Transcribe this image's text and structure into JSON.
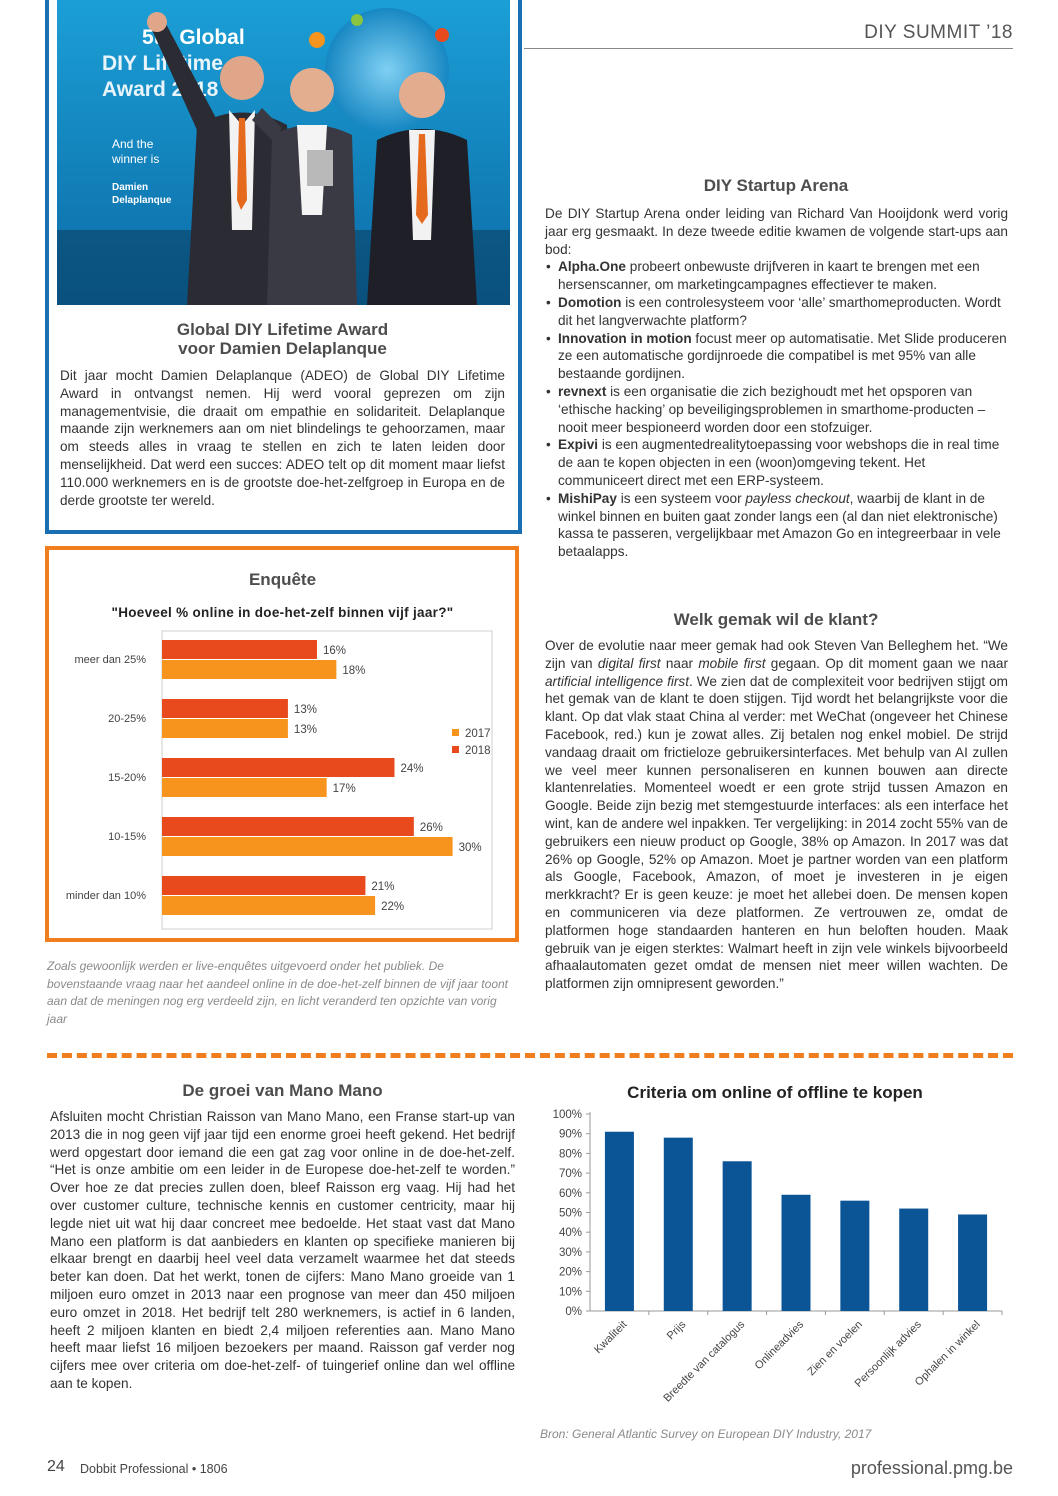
{
  "header": {
    "title": "DIY SUMMIT ’18"
  },
  "award": {
    "photo": {
      "banner_line1": "5th Global",
      "banner_line2": "DIY Lifetime",
      "banner_line3": "Award 2018",
      "banner_sub1": "And the",
      "banner_sub2": "winner is",
      "banner_name1": "Damien",
      "banner_name2": "Delaplanque"
    },
    "heading_line1": "Global DIY Lifetime Award",
    "heading_line2": "voor Damien Delaplanque",
    "body": "Dit jaar mocht Damien Delaplanque (ADEO) de Global DIY Lifetime Award in ontvangst nemen. Hij werd vooral geprezen om zijn managementvisie, die draait om empathie en solidariteit. Delaplanque maande zijn werknemers aan om niet blindelings te gehoorzamen, maar om steeds alles in vraag te stellen en zich te laten leiden door menselijkheid. Dat werd een succes: ADEO telt op dit moment maar liefst 110.000 werknemers en is de grootste doe-het-zelfgroep in Europa en de derde grootste ter wereld."
  },
  "survey": {
    "title": "Enquête",
    "caption": "Zoals gewoonlijk werden er live-enquêtes uitgevoerd onder het publiek. De bovenstaande vraag naar het aandeel online in de doe-het-zelf binnen de vijf jaar toont aan dat de meningen nog erg verdeeld zijn, en licht veranderd ten opzichte van vorig jaar"
  },
  "startup": {
    "heading": "DIY Startup Arena",
    "intro": "De DIY Startup Arena onder leiding van Richard Van Hooijdonk werd vorig jaar erg gesmaakt. In deze tweede editie kwamen de volgende start-ups aan bod:",
    "items": [
      {
        "name": "Alpha.One",
        "text": " probeert onbewuste drijfveren in kaart te brengen met een hersenscanner, om marketingcampagnes effectiever te maken."
      },
      {
        "name": "Domotion",
        "text": " is een controlesysteem voor ‘alle’ smarthomeproducten. Wordt dit het langverwachte platform?"
      },
      {
        "name": "Innovation in motion",
        "text": " focust meer op automatisatie. Met Slide produceren ze een automatische gordijnroede die compatibel is met 95% van alle bestaande gordijnen."
      },
      {
        "name": "revnext",
        "text": " is een organisatie die zich bezighoudt met het opsporen van ‘ethische hacking’ op beveiligingsproblemen in smarthome-producten – nooit meer bespioneerd worden door een stofzuiger."
      },
      {
        "name": "Expivi",
        "text": " is een augmentedrealitytoepassing voor webshops die in real time de aan te kopen objecten in een (woon)omgeving tekent. Het communiceert direct met een ERP-systeem."
      },
      {
        "name": "MishiPay",
        "text_before": " is een systeem voor ",
        "text_em": "payless checkout",
        "text_after": ", waarbij de klant in de winkel binnen en buiten gaat zonder langs een (al dan niet elektronische) kassa te passeren, vergelijkbaar met Amazon Go en integreerbaar in vele betaalapps."
      }
    ]
  },
  "klant": {
    "heading": "Welk gemak wil de klant?",
    "p1": "Over de evolutie naar meer gemak had ook Steven Van Belleghem het. “We zijn van ",
    "em1": "digital first",
    "p2": " naar ",
    "em2": "mobile first",
    "p3": " gegaan. Op dit moment gaan we naar ",
    "em3": "artificial intelligence first",
    "p4": ". We zien dat de complexiteit voor bedrijven stijgt om het gemak van de klant te doen stijgen. Tijd wordt het belangrijkste voor die klant. Op dat vlak staat China al verder: met WeChat (ongeveer het Chinese Facebook, red.) kun je zowat alles. Zij betalen nog enkel mobiel. De strijd vandaag draait om frictieloze gebruikersinterfaces. Met behulp van AI zullen we veel meer kunnen personaliseren en kunnen bouwen aan directe klantenrelaties. Momenteel woedt er een grote strijd tussen Amazon en Google. Beide zijn bezig met stemgestuurde interfaces: als een interface het wint, kan de andere wel inpakken. Ter vergelijking: in 2014 zocht 55% van de gebruikers een nieuw product op Google, 38% op Amazon. In 2017 was dat 26% op Google, 52% op Amazon. Moet je partner worden van een platform als Google, Facebook, Amazon, of moet je investeren in je eigen merkkracht? Er is geen keuze: je moet het allebei doen. De mensen kopen en communiceren via deze platformen. Ze vertrouwen ze, omdat de platformen hoge standaarden hanteren en hun beloften houden. Maak gebruik van je eigen sterktes: Walmart heeft in zijn vele winkels bijvoorbeeld afhaalautomaten gezet omdat de mensen niet meer willen wachten. De platformen zijn omnipresent geworden.”"
  },
  "mano": {
    "heading": "De groei van Mano Mano",
    "body": "Afsluiten mocht Christian Raisson van Mano Mano, een Franse start-up van 2013 die in nog geen vijf jaar tijd een enorme groei heeft gekend. Het bedrijf werd opgestart door iemand die een gat zag voor online in de doe-het-zelf. “Het is onze ambitie om een leider in de Europese doe-het-zelf te worden.” Over hoe ze dat precies zullen doen, bleef Raisson erg vaag. Hij had het over customer culture, technische kennis en customer centricity, maar hij legde niet uit wat hij daar concreet mee bedoelde. Het staat vast dat Mano Mano een platform is dat aanbieders en klanten op specifieke manieren bij elkaar brengt en daarbij heel veel data verzamelt waarmee het dat steeds beter kan doen. Dat het werkt, tonen de cijfers: Mano Mano groeide van 1 miljoen euro omzet in 2013 naar een prognose van meer dan 450 miljoen euro omzet in 2018. Het bedrijf telt 280 werknemers, is actief in 6 landen, heeft 2 miljoen klanten en biedt 2,4 miljoen referenties aan. Mano Mano heeft maar liefst 16 miljoen bezoekers per maand. Raisson gaf verder nog cijfers mee over criteria om doe-het-zelf- of tuingerief online dan wel offline aan te kopen."
  },
  "criteria": {
    "source": "Bron: General Atlantic Survey on European DIY Industry, 2017"
  },
  "footer": {
    "page_number": "24",
    "publication": "Dobbit Professional • 1806",
    "url": "professional.pmg.be"
  },
  "colors": {
    "series_2017": "#f7941d",
    "series_2018": "#e8491d",
    "criteria_bar": "#0b5597",
    "award_border": "#1a6fb3",
    "survey_border": "#f07d1e"
  },
  "chart_data": [
    {
      "type": "bar",
      "orientation": "horizontal",
      "title": "\"Hoeveel % online in doe-het-zelf binnen vijf jaar?\"",
      "categories": [
        "meer dan 25%",
        "20-25%",
        "15-20%",
        "10-15%",
        "minder dan 10%"
      ],
      "series": [
        {
          "name": "2017",
          "values": [
            16,
            13,
            24,
            26,
            21
          ],
          "labels": [
            "16%",
            "13%",
            "24%",
            "26%",
            "21%"
          ]
        },
        {
          "name": "2018",
          "values": [
            18,
            13,
            17,
            30,
            22
          ],
          "labels": [
            "18%",
            "13%",
            "17%",
            "30%",
            "22%"
          ]
        }
      ],
      "xlim": [
        0,
        35
      ],
      "legend": "right",
      "grid": false
    },
    {
      "type": "bar",
      "title": "Criteria om online of offline te kopen",
      "categories": [
        "Kwaliteit",
        "Prijs",
        "Breedte van catalogus",
        "Onlineadvies",
        "Zien en voelen",
        "Persoonlijk advies",
        "Ophalen in winkel"
      ],
      "values": [
        91,
        88,
        76,
        59,
        56,
        52,
        49
      ],
      "yticks": [
        "0%",
        "10%",
        "20%",
        "30%",
        "40%",
        "50%",
        "60%",
        "70%",
        "80%",
        "90%",
        "100%"
      ],
      "ylim": [
        0,
        100
      ],
      "grid": false
    }
  ]
}
